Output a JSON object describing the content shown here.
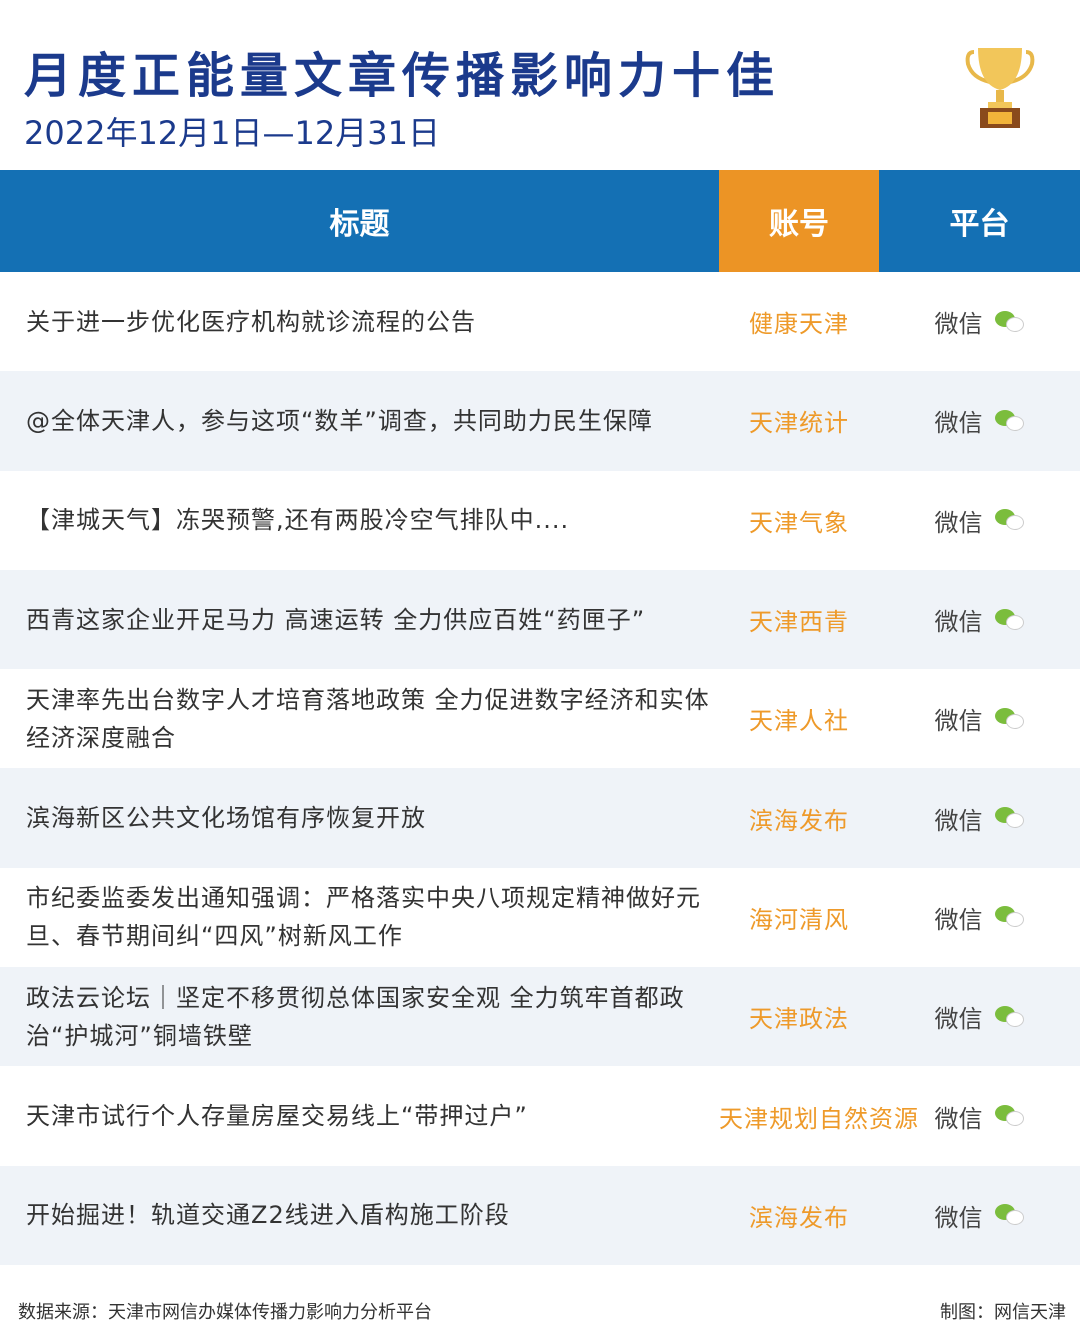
{
  "header": {
    "title": "月度正能量文章传播影响力十佳",
    "date_range": "2022年12月1日—12月31日"
  },
  "table": {
    "columns": [
      "标题",
      "账号",
      "平台"
    ],
    "rows": [
      {
        "title": "关于进一步优化医疗机构就诊流程的公告",
        "account": "健康天津",
        "platform": "微信"
      },
      {
        "title": "@全体天津人，参与这项“数羊”调查，共同助力民生保障",
        "account": "天津统计",
        "platform": "微信"
      },
      {
        "title": "【津城天气】冻哭预警,还有两股冷空气排队中....",
        "account": "天津气象",
        "platform": "微信"
      },
      {
        "title": "西青这家企业开足马力 高速运转 全力供应百姓“药匣子”",
        "account": "天津西青",
        "platform": "微信"
      },
      {
        "title": "天津率先出台数字人才培育落地政策 全力促进数字经济和实体经济深度融合",
        "account": "天津人社",
        "platform": "微信"
      },
      {
        "title": "滨海新区公共文化场馆有序恢复开放",
        "account": "滨海发布",
        "platform": "微信"
      },
      {
        "title": "市纪委监委发出通知强调：严格落实中央八项规定精神做好元旦、春节期间纠“四风”树新风工作",
        "account": "海河清风",
        "platform": "微信"
      },
      {
        "title": "政法云论坛｜坚定不移贯彻总体国家安全观 全力筑牢首都政治“护城河”铜墙铁壁",
        "account": "天津政法",
        "platform": "微信"
      },
      {
        "title": "天津市试行个人存量房屋交易线上“带押过户”",
        "account": "天津规划自然资源",
        "platform": "微信"
      },
      {
        "title": "开始掘进！轨道交通Z2线进入盾构施工阶段",
        "account": "滨海发布",
        "platform": "微信"
      }
    ]
  },
  "footer": {
    "source": "数据来源：天津市网信办媒体传播力影响力分析平台",
    "credit": "制图：网信天津"
  },
  "colors": {
    "header_blue": "#1470b4",
    "accent_orange": "#ec9425",
    "title_navy": "#1b3a8c",
    "wechat_green": "#7bbd3d"
  }
}
